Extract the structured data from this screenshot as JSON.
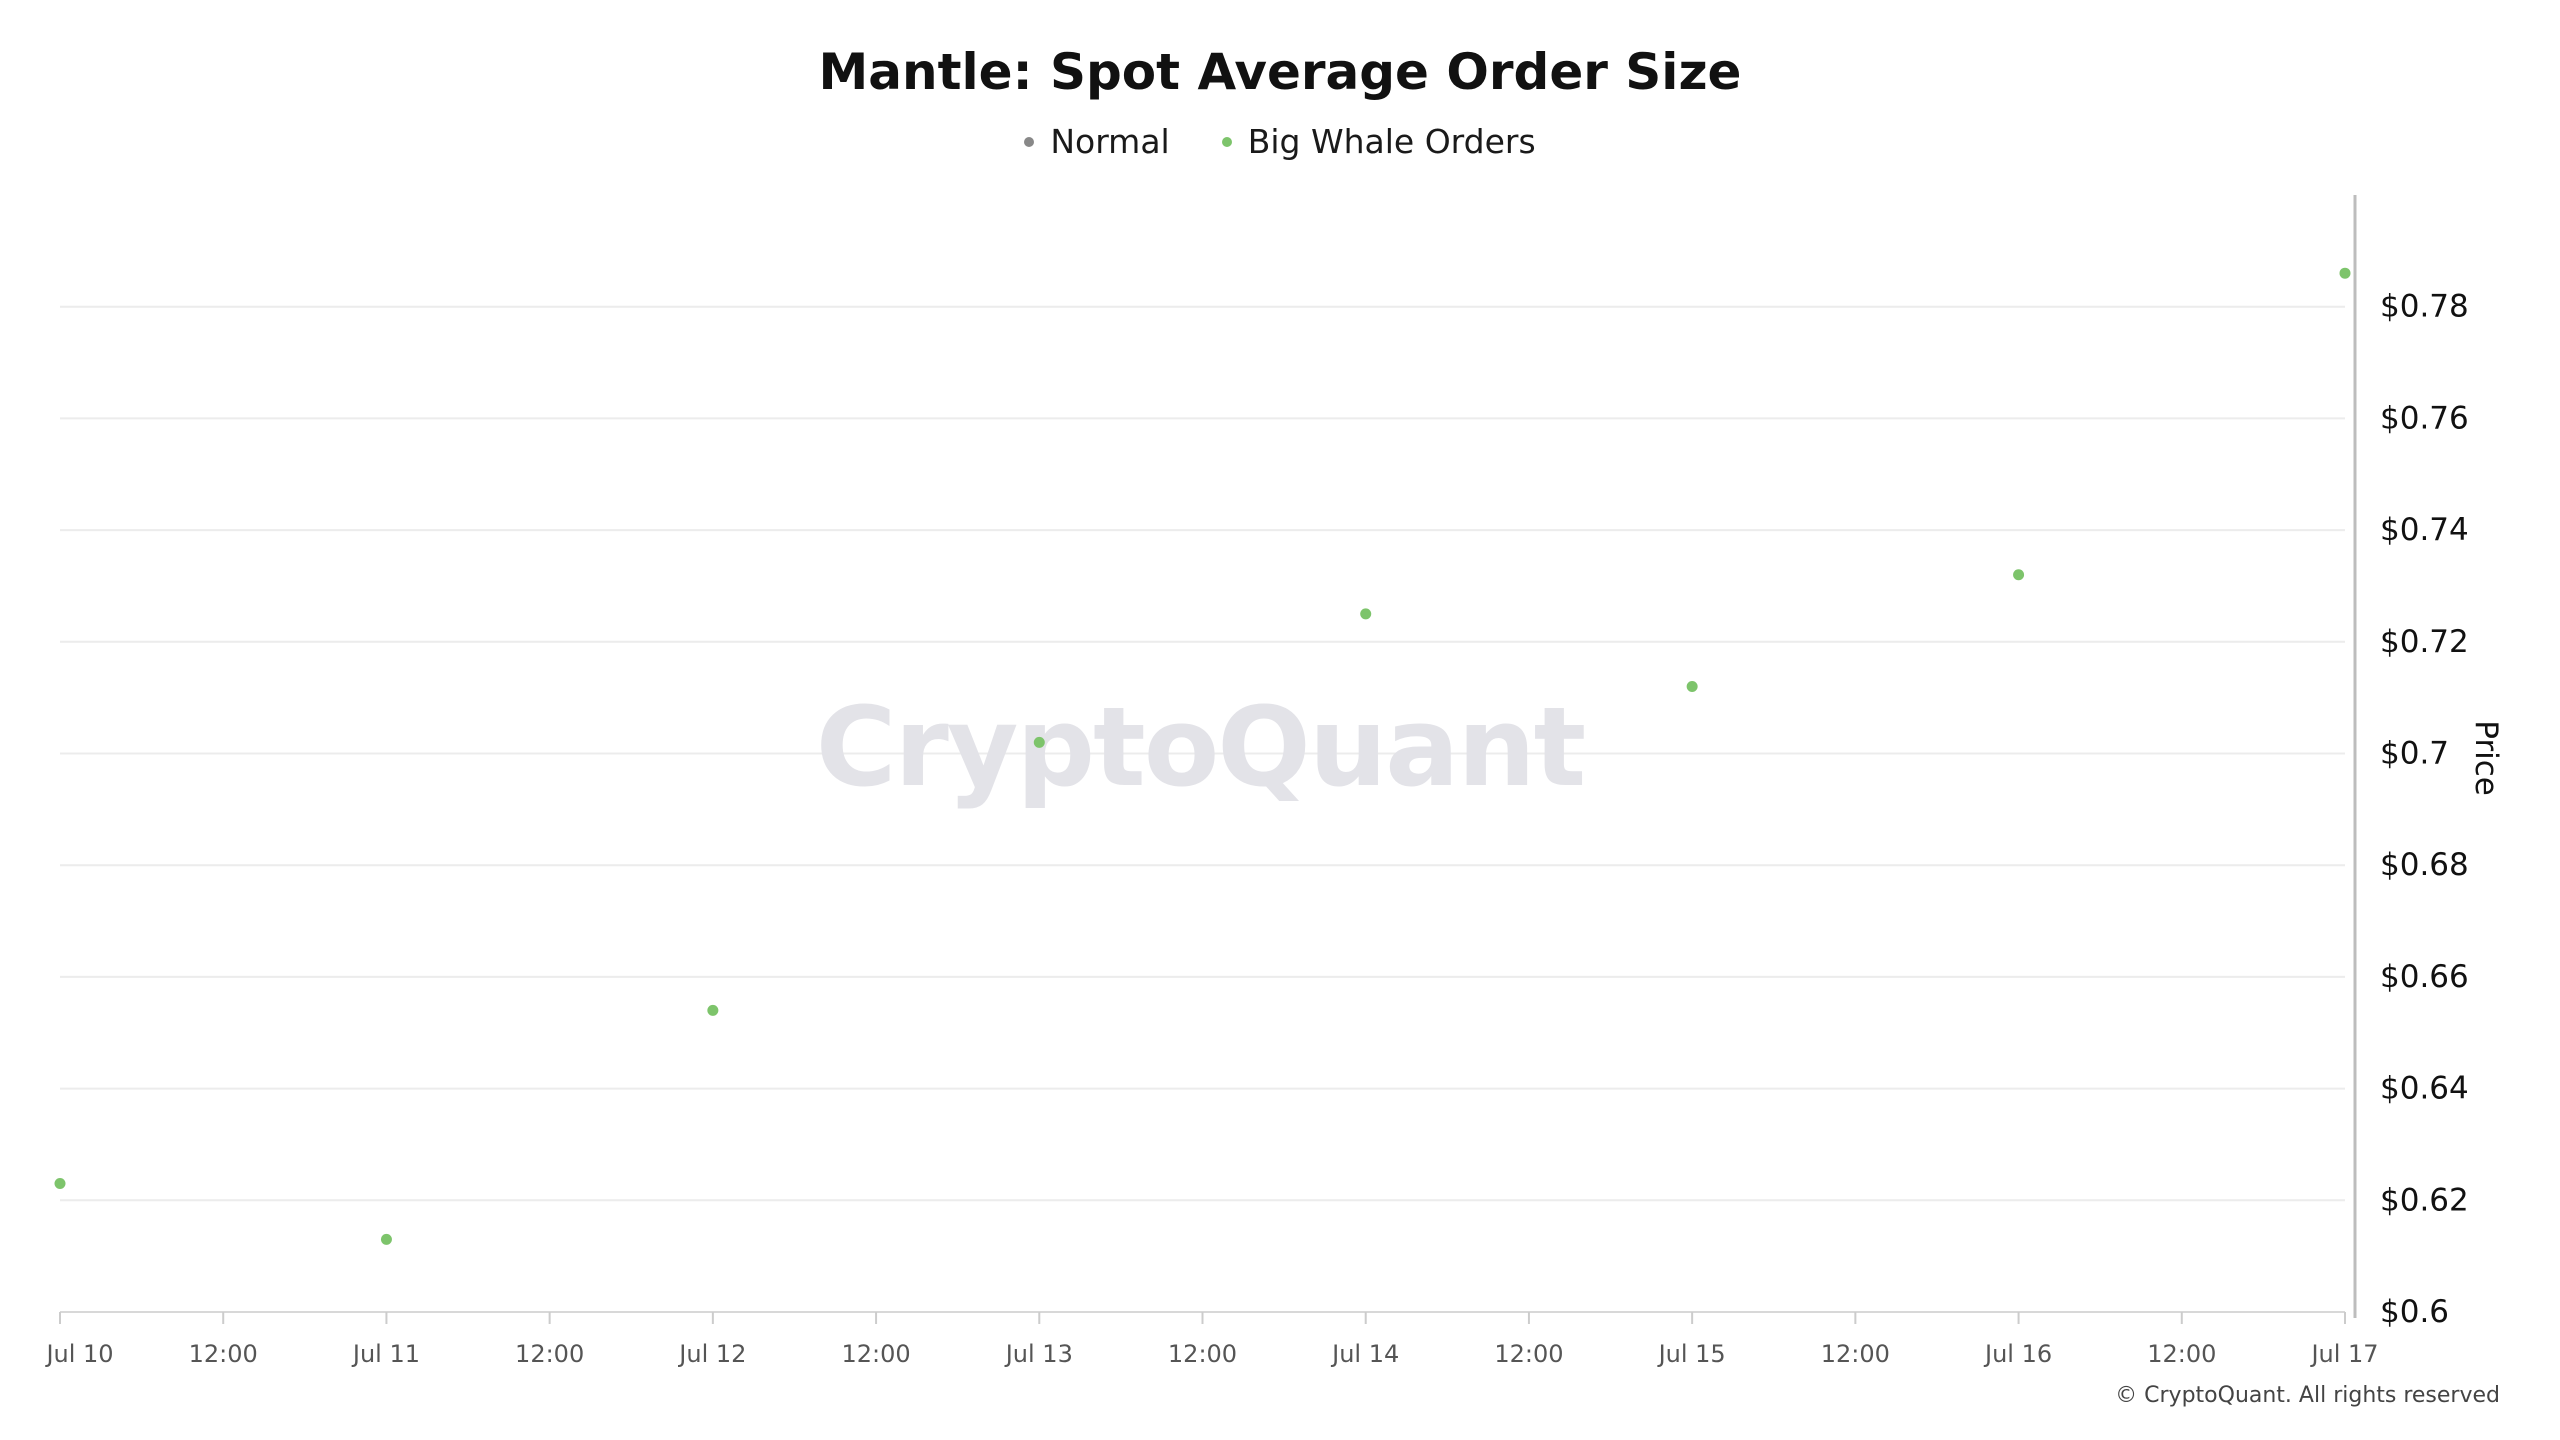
{
  "chart_data": {
    "type": "scatter",
    "title": "Mantle: Spot Average Order Size",
    "ylabel": "Price",
    "xlabel": "",
    "x_ticks": [
      "Jul 10",
      "12:00",
      "Jul 11",
      "12:00",
      "Jul 12",
      "12:00",
      "Jul 13",
      "12:00",
      "Jul 14",
      "12:00",
      "Jul 15",
      "12:00",
      "Jul 16",
      "12:00",
      "Jul 17"
    ],
    "y_ticks": [
      "$0.6",
      "$0.62",
      "$0.64",
      "$0.66",
      "$0.68",
      "$0.7",
      "$0.72",
      "$0.74",
      "$0.76",
      "$0.78"
    ],
    "y_axis_position": "right",
    "legend_position": "top-center",
    "grid": true,
    "series": [
      {
        "name": "Normal",
        "color": "#888888",
        "points": []
      },
      {
        "name": "Big Whale Orders",
        "color": "#7dc46b",
        "points": [
          {
            "x": "Jul 10",
            "y": 0.623
          },
          {
            "x": "Jul 11",
            "y": 0.613
          },
          {
            "x": "Jul 12",
            "y": 0.654
          },
          {
            "x": "Jul 13",
            "y": 0.702
          },
          {
            "x": "Jul 14",
            "y": 0.725
          },
          {
            "x": "Jul 15",
            "y": 0.712
          },
          {
            "x": "Jul 16",
            "y": 0.732
          },
          {
            "x": "Jul 17",
            "y": 0.786
          }
        ]
      }
    ]
  },
  "watermark": "CryptoQuant",
  "footer": "© CryptoQuant. All rights reserved"
}
